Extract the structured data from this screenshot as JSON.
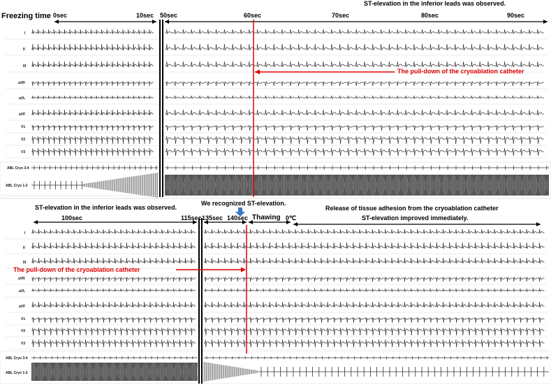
{
  "top": {
    "freezing_label": "Freezing time",
    "t0": "0sec",
    "t10": "10sec",
    "t50": "50sec",
    "t60": "60sec",
    "t70": "70sec",
    "t80": "80sec",
    "t90": "90sec",
    "st_note": "ST-elevation in the inferior leads was observed.",
    "pulldown_note": "The pull-down of the cryoablation catheter"
  },
  "bottom": {
    "st_note": "ST-elevation in the inferior leads was observed.",
    "recognized_note": "We recognized ST-elevation.",
    "t100": "100sec",
    "t115": "115sec",
    "t135": "135sec",
    "t140": "140sec",
    "thawing": "Thawing",
    "zero_c": "0℃",
    "release_note": "Release of tissue adhesion from the cryoablation catheter",
    "improved_note": "ST-elevation improved immediately.",
    "pulldown_note": "The pull-down of the cryoablation catheter"
  },
  "leads": [
    "I",
    "II",
    "III",
    "aVR",
    "aVL",
    "aVF",
    "V1",
    "V2",
    "V3",
    "ABL Cryo 3-4",
    "ABL Cryo 1-2"
  ],
  "colors": {
    "marker": "#e00000",
    "arrow_blue": "#3a78c8",
    "trace": "#333333",
    "grid": "#d8d8d8"
  }
}
